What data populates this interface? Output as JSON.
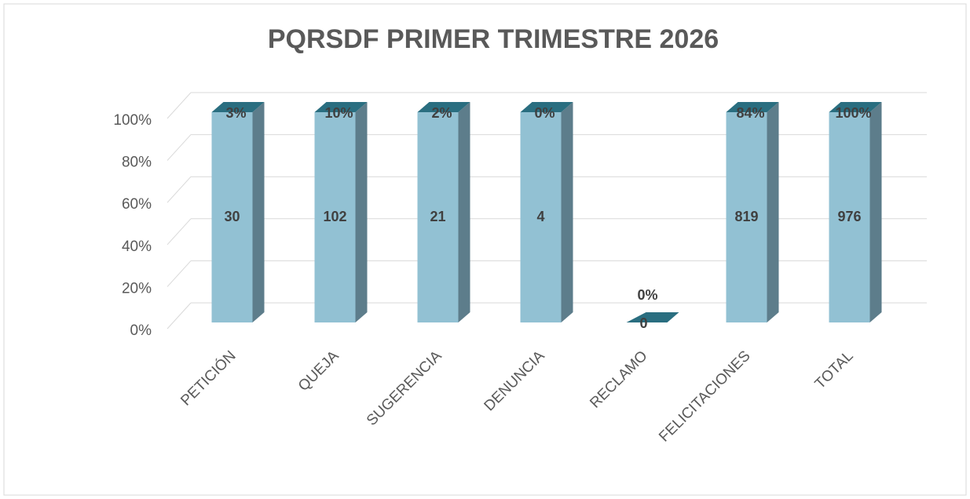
{
  "chart_data": {
    "type": "bar3d_percent",
    "title": "PQRSDF PRIMER TRIMESTRE 2026",
    "categories": [
      "PETICIÓN",
      "QUEJA",
      "SUGERENCIA",
      "DENUNCIA",
      "RECLAMO",
      "FELICITACIONES",
      "TOTAL"
    ],
    "values": [
      30,
      102,
      21,
      4,
      0,
      819,
      976
    ],
    "percent_labels": [
      "3%",
      "10%",
      "2%",
      "0%",
      "0%",
      "84%",
      "100%"
    ],
    "color": "#92c1d3",
    "ylim": [
      0,
      100
    ],
    "yticks": [
      {
        "value": 0,
        "label": "0%"
      },
      {
        "value": 20,
        "label": "20%"
      },
      {
        "value": 40,
        "label": "40%"
      },
      {
        "value": 60,
        "label": "60%"
      },
      {
        "value": 80,
        "label": "80%"
      },
      {
        "value": 100,
        "label": "100%"
      }
    ],
    "grid": true
  }
}
